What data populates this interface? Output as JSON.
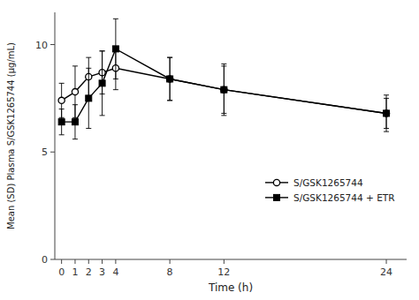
{
  "chart_data": {
    "type": "line",
    "x": [
      0,
      1,
      2,
      3,
      4,
      8,
      12,
      24
    ],
    "xlabel": "Time (h)",
    "ylabel": "Mean (SD) Plasma S/GSK1265744 (µg/mL)",
    "series": [
      {
        "name": "S/GSK1265744",
        "color": "#000000",
        "marker": "open-circle",
        "line_style": "solid",
        "values": [
          7.4,
          7.8,
          8.5,
          8.7,
          8.9,
          8.4,
          7.9,
          6.8
        ],
        "errors": [
          0.8,
          1.2,
          0.9,
          1.0,
          1.0,
          1.0,
          1.2,
          0.7
        ]
      },
      {
        "name": "S/GSK1265744 + ETR",
        "color": "#000000",
        "marker": "square",
        "line_style": "solid",
        "values": [
          6.4,
          6.4,
          7.5,
          8.2,
          9.8,
          8.4,
          7.9,
          6.8
        ],
        "errors": [
          0.6,
          0.8,
          1.4,
          1.5,
          1.4,
          1.0,
          1.1,
          0.85
        ]
      }
    ],
    "xlim": [
      -0.5,
      25.5
    ],
    "ylim": [
      0,
      11.5
    ],
    "xticks": [
      0,
      1,
      2,
      3,
      4,
      8,
      12,
      24
    ],
    "yticks": [
      0,
      5,
      10
    ],
    "legend": "lower right",
    "grid": false
  }
}
